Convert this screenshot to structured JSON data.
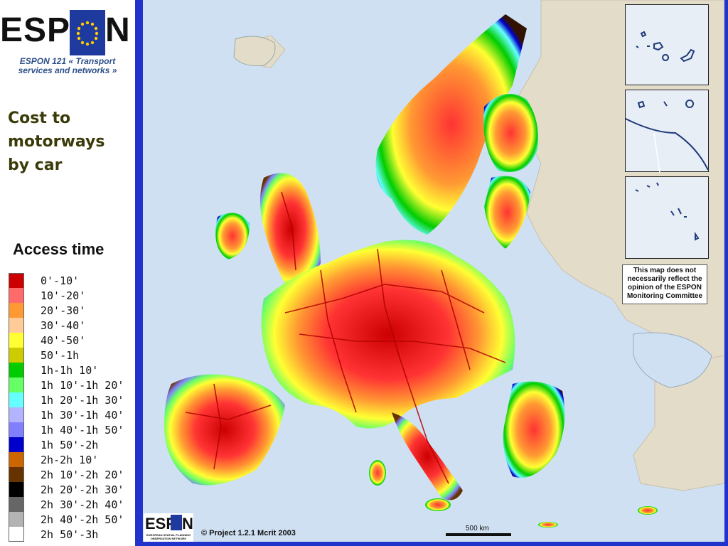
{
  "logo": {
    "text_left": "ESP",
    "text_right": "N",
    "flag_color": "#1f3a9e",
    "star_color": "#ffcc00"
  },
  "subtitle": "ESPON 121 « Transport services and networks »",
  "title": "Cost to motorways by car",
  "legend": {
    "title": "Access time",
    "items": [
      {
        "label": "0'-10'",
        "color": "#cc0000"
      },
      {
        "label": "10'-20'",
        "color": "#ff6b6b"
      },
      {
        "label": "20'-30'",
        "color": "#ff9933"
      },
      {
        "label": "30'-40'",
        "color": "#ffcc99"
      },
      {
        "label": "40'-50'",
        "color": "#ffff33"
      },
      {
        "label": "50'-1h",
        "color": "#cccc00"
      },
      {
        "label": "1h-1h 10'",
        "color": "#00cc00"
      },
      {
        "label": "1h 10'-1h 20'",
        "color": "#66ff66"
      },
      {
        "label": "1h 20'-1h 30'",
        "color": "#66ffff"
      },
      {
        "label": "1h 30'-1h 40'",
        "color": "#b3b3ff"
      },
      {
        "label": "1h 40'-1h 50'",
        "color": "#8080ff"
      },
      {
        "label": "1h 50'-2h",
        "color": "#0000cc"
      },
      {
        "label": "2h-2h 10'",
        "color": "#cc6600"
      },
      {
        "label": "2h 10'-2h 20'",
        "color": "#663300"
      },
      {
        "label": "2h 20'-2h 30'",
        "color": "#000000"
      },
      {
        "label": "2h 30'-2h 40'",
        "color": "#666666"
      },
      {
        "label": "2h 40'-2h 50'",
        "color": "#b3b3b3"
      },
      {
        "label": "2h 50'-3h",
        "color": "#ffffff"
      }
    ]
  },
  "map": {
    "sea_color": "#cfe0f2",
    "non_study_land_color": "#e3dcc9",
    "frame_color": "#2233cc",
    "disclaimer": "This map does not necessarily reflect the opinion of the ESPON Monitoring Committee",
    "copyright": "© Project 1.2.1 Mcrit 2003",
    "scale_label": "500 km",
    "bottom_logo_text": "ESP",
    "bottom_logo_text_right": "N",
    "bottom_logo_caption": "EUROPEAN SPATIAL PLANNING OBSERVATION NETWORK"
  }
}
